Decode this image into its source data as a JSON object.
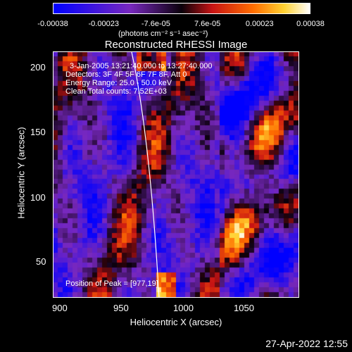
{
  "colorbar": {
    "tick_labels": [
      "-0.00038",
      "-0.00023",
      "-7.6e-05",
      "7.6e-05",
      "0.00023",
      "0.00038"
    ],
    "units": "(photons cm⁻² s⁻¹ asec⁻²)"
  },
  "plot": {
    "title": "Reconstructed RHESSI Image",
    "info_lines": [
      "3-Jan-2005 13:21:40.000 to 13:27:40.000",
      "Detectors: 3F 4F 5F 6F 7F 8F, Att 0",
      "Energy Range: 25.0 - 50.0 keV",
      "Clean    Total counts: 7.52E+03"
    ],
    "peak_text": "Position of Peak = [977,19]",
    "x_ticks": [
      "900",
      "950",
      "1000",
      "1050"
    ],
    "y_ticks": [
      "200",
      "150",
      "100",
      "50"
    ],
    "xlabel": "Heliocentric X (arcsec)",
    "ylabel": "Heliocentric Y (arcsec)"
  },
  "footer": {
    "timestamp": "27-Apr-2022 12:55"
  },
  "chart_data": {
    "type": "heatmap",
    "title": "Reconstructed RHESSI Image",
    "xlabel": "Heliocentric X (arcsec)",
    "ylabel": "Heliocentric Y (arcsec)",
    "x_ticks": [
      900,
      950,
      1000,
      1050
    ],
    "y_ticks": [
      50,
      100,
      150,
      200
    ],
    "xlim": [
      883,
      1087
    ],
    "ylim": [
      19,
      213
    ],
    "colorbar_ticks": [
      -0.00038,
      -0.00023,
      -7.6e-05,
      7.6e-05,
      0.00023,
      0.00038
    ],
    "colorbar_range": [
      -0.00038,
      0.00038
    ],
    "colormap": "blue-purple-red-orange-yellow-white",
    "peak_position": [
      977,
      19
    ],
    "limb_curve": true,
    "accent_colors": {
      "negative": "#2020ff",
      "neutral": "#7a1fbf",
      "positive": "#ff6000",
      "max": "#ffffff"
    }
  }
}
